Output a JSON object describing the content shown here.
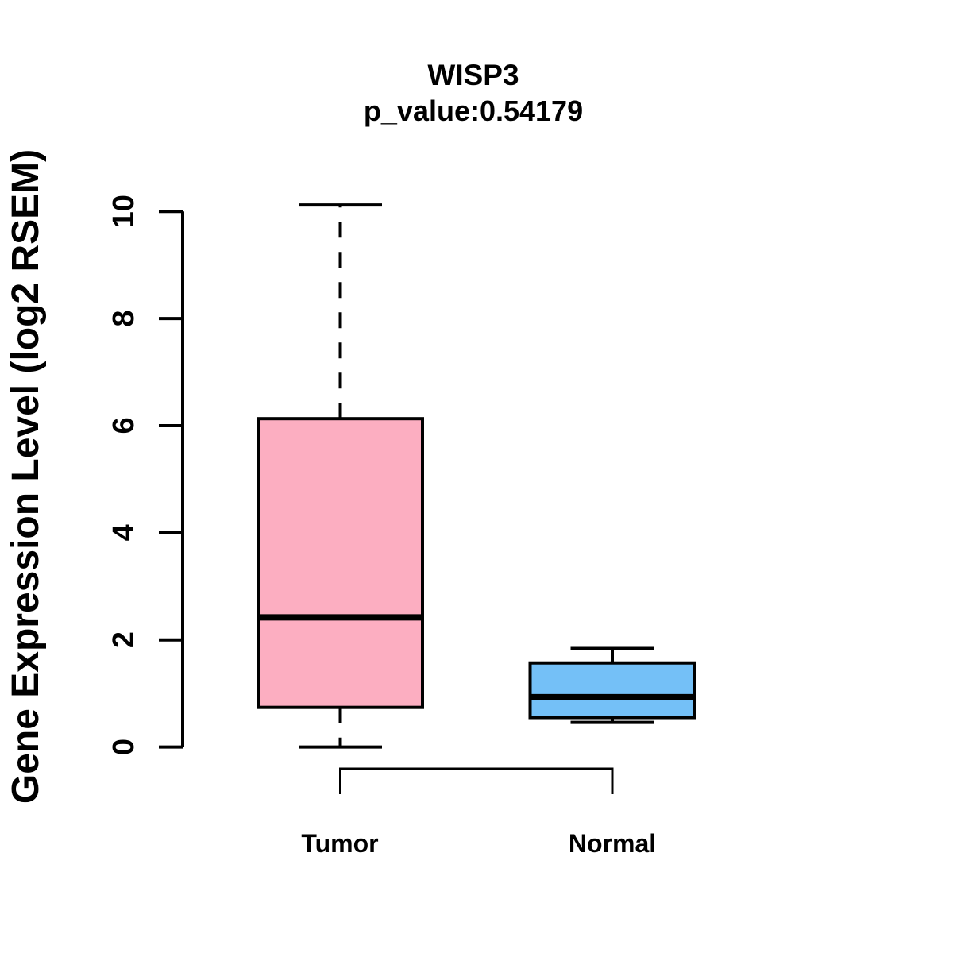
{
  "page": {
    "background": "#FFFFFF"
  },
  "chart_data": {
    "type": "boxplot",
    "title": "WISP3",
    "subtitle": "p_value:0.54179",
    "ylabel": "Gene Expression Level (log2 RSEM)",
    "xlabel": "",
    "categories": [
      "Tumor",
      "Normal"
    ],
    "yticks": [
      0,
      2,
      4,
      6,
      8,
      10
    ],
    "ylim": [
      0,
      10.2
    ],
    "grid": false,
    "legend": "none",
    "stroke_color": "#000000",
    "series": [
      {
        "name": "Tumor",
        "fill_color": "#FCAEC1",
        "whisker_low": 0.0,
        "q1": 0.74,
        "median": 2.42,
        "q3": 6.13,
        "whisker_high": 10.12
      },
      {
        "name": "Normal",
        "fill_color": "#74C0F7",
        "whisker_low": 0.46,
        "q1": 0.55,
        "median": 0.93,
        "q3": 1.57,
        "whisker_high": 1.84
      }
    ],
    "comparison_bracket": {
      "between": [
        "Tumor",
        "Normal"
      ]
    }
  }
}
